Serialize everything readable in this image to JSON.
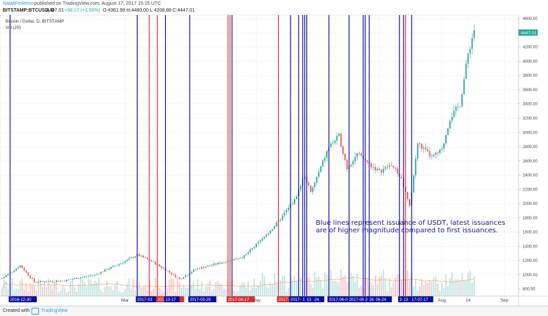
{
  "header": {
    "author": "NataliFederico",
    "published_text": "published on TradingView.com, August 17, 2017 15:15 UTC"
  },
  "symbol_line": {
    "symbol": "BITSTAMP:BTCUSD, D",
    "last": "4447.01",
    "change": "+68.17 (+1.56%)",
    "ohlc": "O:4361.99 H:4480.00 L:4208.88 C:4447.01"
  },
  "pane": {
    "title": "Bitcoin / Dollar, D, BITSTAMP",
    "volume_label": "Vol (20)"
  },
  "footer": {
    "created_with": "Created with",
    "brand": "TradingView"
  },
  "annotation": {
    "line1": "Blue lines represent issuance of USDT, latest issuances",
    "line2": "are of higher magnitude compared to first issuances."
  },
  "colors": {
    "blue_line": "#0d0d9e",
    "red_line": "#d32f2f",
    "up_candle": "#26a69a",
    "down_candle": "#ef5350",
    "vol_ma": "#f4a261"
  },
  "chart_data": {
    "type": "candlestick",
    "title": "Bitcoin / Dollar, D, BITSTAMP",
    "y_axis": {
      "ticks": [
        800,
        1000,
        1200,
        1400,
        1600,
        1800,
        2000,
        2200,
        2400,
        2600,
        2800,
        3000,
        3200,
        3400,
        3600,
        3800,
        4000,
        4200,
        4400,
        4600
      ],
      "range": [
        700,
        4650
      ],
      "price_label": "4447.01"
    },
    "x_axis": {
      "range": [
        "2016-12-25",
        "2017-09-08"
      ],
      "labels": [
        {
          "date": "2017-02-25",
          "text": "Mar"
        },
        {
          "date": "2017-05-01",
          "text": "May"
        },
        {
          "date": "2017-07-01",
          "text": "Jul"
        },
        {
          "date": "2017-08-01",
          "text": "Aug"
        },
        {
          "date": "2017-08-14",
          "text": "14"
        },
        {
          "date": "2017-09-01",
          "text": "Sep"
        }
      ]
    },
    "vertical_lines": [
      {
        "date": "2016-12-30",
        "color": "blue",
        "label": "2016-12-30"
      },
      {
        "date": "2017-03-03",
        "color": "blue",
        "label": "2017-03"
      },
      {
        "date": "2017-03-09",
        "color": "red",
        "label": ""
      },
      {
        "date": "2017-03-13",
        "color": "red",
        "label": "2017-03-13"
      },
      {
        "date": "2017-03-17",
        "color": "blue",
        "label": "13-17"
      },
      {
        "date": "2017-03-29",
        "color": "blue",
        "label": "2017-03-29"
      },
      {
        "date": "2017-04-17",
        "color": "red",
        "label": "2017-04-17"
      },
      {
        "date": "2017-04-18",
        "color": "red",
        "label": ""
      },
      {
        "date": "2017-04-19",
        "color": "blue",
        "label": ""
      },
      {
        "date": "2017-05-12",
        "color": "red",
        "label": "2017-05-12"
      },
      {
        "date": "2017-05-18",
        "color": "blue",
        "label": "2017-05-18"
      },
      {
        "date": "2017-05-22",
        "color": "blue",
        "label": ""
      },
      {
        "date": "2017-05-24",
        "color": "blue",
        "label": "17-05-24"
      },
      {
        "date": "2017-05-25",
        "color": "blue",
        "label": ""
      },
      {
        "date": "2017-05-26",
        "color": "blue",
        "label": "13"
      },
      {
        "date": "2017-06-06",
        "color": "blue",
        "label": "2017-06-06"
      },
      {
        "date": "2017-06-16",
        "color": "blue",
        "label": "2017-06-16"
      },
      {
        "date": "2017-06-23",
        "color": "blue",
        "label": ""
      },
      {
        "date": "2017-06-24",
        "color": "blue",
        "label": "2017-06-24"
      },
      {
        "date": "2017-06-26",
        "color": "blue",
        "label": "26"
      },
      {
        "date": "2017-07-11",
        "color": "blue",
        "label": "2017-07-11"
      },
      {
        "date": "2017-07-13",
        "color": "blue",
        "label": "13"
      },
      {
        "date": "2017-07-14",
        "color": "red",
        "label": ""
      },
      {
        "date": "2017-07-17",
        "color": "blue",
        "label": "17-07-17"
      }
    ],
    "close_series": [
      {
        "date": "2016-12-26",
        "value": 950
      },
      {
        "date": "2017-01-04",
        "value": 1130
      },
      {
        "date": "2017-01-11",
        "value": 900
      },
      {
        "date": "2017-01-25",
        "value": 915
      },
      {
        "date": "2017-02-10",
        "value": 1000
      },
      {
        "date": "2017-02-25",
        "value": 1190
      },
      {
        "date": "2017-03-03",
        "value": 1280
      },
      {
        "date": "2017-03-10",
        "value": 1190
      },
      {
        "date": "2017-03-17",
        "value": 1070
      },
      {
        "date": "2017-03-24",
        "value": 940
      },
      {
        "date": "2017-04-01",
        "value": 1080
      },
      {
        "date": "2017-04-15",
        "value": 1180
      },
      {
        "date": "2017-04-25",
        "value": 1260
      },
      {
        "date": "2017-05-04",
        "value": 1500
      },
      {
        "date": "2017-05-12",
        "value": 1750
      },
      {
        "date": "2017-05-20",
        "value": 2050
      },
      {
        "date": "2017-05-25",
        "value": 2400
      },
      {
        "date": "2017-05-28",
        "value": 2150
      },
      {
        "date": "2017-06-06",
        "value": 2800
      },
      {
        "date": "2017-06-11",
        "value": 2950
      },
      {
        "date": "2017-06-15",
        "value": 2500
      },
      {
        "date": "2017-06-20",
        "value": 2700
      },
      {
        "date": "2017-06-25",
        "value": 2580
      },
      {
        "date": "2017-07-01",
        "value": 2450
      },
      {
        "date": "2017-07-07",
        "value": 2550
      },
      {
        "date": "2017-07-12",
        "value": 2350
      },
      {
        "date": "2017-07-16",
        "value": 1950
      },
      {
        "date": "2017-07-20",
        "value": 2850
      },
      {
        "date": "2017-07-27",
        "value": 2650
      },
      {
        "date": "2017-08-01",
        "value": 2750
      },
      {
        "date": "2017-08-05",
        "value": 3200
      },
      {
        "date": "2017-08-10",
        "value": 3400
      },
      {
        "date": "2017-08-14",
        "value": 4100
      },
      {
        "date": "2017-08-17",
        "value": 4447
      }
    ]
  }
}
